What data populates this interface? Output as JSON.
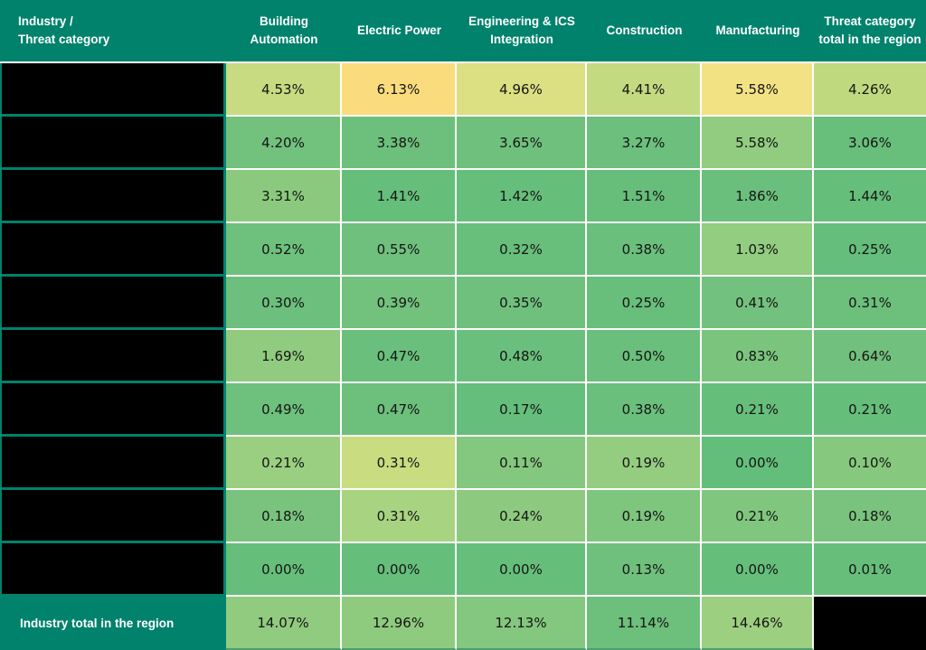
{
  "colors": {
    "teal": "#00826C",
    "gridline_white": "#FCFCFA",
    "redaction_black": "#000000",
    "min_green": "#63BE7B",
    "max_yellow": "#FBDC7D"
  },
  "header": {
    "corner_label": "Industry /\nThreat category",
    "columns": [
      "Building Automation",
      "Electric Power",
      "Engineering & ICS Integration",
      "Construction",
      "Manufacturing",
      "Threat category total in the region"
    ]
  },
  "rows": [
    {
      "label_redacted": true,
      "cells": [
        {
          "value": "4.53%",
          "color": "#C8DB80"
        },
        {
          "value": "6.13%",
          "color": "#FBDC7D"
        },
        {
          "value": "4.96%",
          "color": "#DCDF82"
        },
        {
          "value": "4.41%",
          "color": "#C3DA80"
        },
        {
          "value": "5.58%",
          "color": "#F3E284"
        },
        {
          "value": "4.26%",
          "color": "#BFD97F"
        }
      ]
    },
    {
      "label_redacted": true,
      "cells": [
        {
          "value": "4.20%",
          "color": "#72C17D"
        },
        {
          "value": "3.38%",
          "color": "#6DBF7C"
        },
        {
          "value": "3.65%",
          "color": "#6FC07D"
        },
        {
          "value": "3.27%",
          "color": "#6CBF7C"
        },
        {
          "value": "5.58%",
          "color": "#92CC80"
        },
        {
          "value": "3.06%",
          "color": "#68BE7B"
        }
      ]
    },
    {
      "label_redacted": true,
      "cells": [
        {
          "value": "3.31%",
          "color": "#8BCA7E"
        },
        {
          "value": "1.41%",
          "color": "#66BE7B"
        },
        {
          "value": "1.42%",
          "color": "#66BE7B"
        },
        {
          "value": "1.51%",
          "color": "#67BE7B"
        },
        {
          "value": "1.86%",
          "color": "#6BBF7C"
        },
        {
          "value": "1.44%",
          "color": "#66BE7B"
        }
      ]
    },
    {
      "label_redacted": true,
      "cells": [
        {
          "value": "0.52%",
          "color": "#6EC07D"
        },
        {
          "value": "0.55%",
          "color": "#6FC07D"
        },
        {
          "value": "0.32%",
          "color": "#68BE7B"
        },
        {
          "value": "0.38%",
          "color": "#6ABF7C"
        },
        {
          "value": "1.03%",
          "color": "#93CD80"
        },
        {
          "value": "0.25%",
          "color": "#65BE7B"
        }
      ]
    },
    {
      "label_redacted": true,
      "cells": [
        {
          "value": "0.30%",
          "color": "#6CBF7C"
        },
        {
          "value": "0.39%",
          "color": "#72C17D"
        },
        {
          "value": "0.35%",
          "color": "#6FC07D"
        },
        {
          "value": "0.25%",
          "color": "#68BE7B"
        },
        {
          "value": "0.41%",
          "color": "#73C17E"
        },
        {
          "value": "0.31%",
          "color": "#6DBF7C"
        }
      ]
    },
    {
      "label_redacted": true,
      "cells": [
        {
          "value": "1.69%",
          "color": "#90CB7F"
        },
        {
          "value": "0.47%",
          "color": "#6ABF7C"
        },
        {
          "value": "0.48%",
          "color": "#6ABF7C"
        },
        {
          "value": "0.50%",
          "color": "#6BBF7C"
        },
        {
          "value": "0.83%",
          "color": "#7BC47E"
        },
        {
          "value": "0.64%",
          "color": "#71C07D"
        }
      ]
    },
    {
      "label_redacted": true,
      "cells": [
        {
          "value": "0.49%",
          "color": "#6EC07D"
        },
        {
          "value": "0.47%",
          "color": "#6DBF7C"
        },
        {
          "value": "0.17%",
          "color": "#65BE7B"
        },
        {
          "value": "0.38%",
          "color": "#6ABF7C"
        },
        {
          "value": "0.21%",
          "color": "#66BE7B"
        },
        {
          "value": "0.21%",
          "color": "#66BE7B"
        }
      ]
    },
    {
      "label_redacted": true,
      "cells": [
        {
          "value": "0.21%",
          "color": "#9ACF81"
        },
        {
          "value": "0.31%",
          "color": "#C9DC7F"
        },
        {
          "value": "0.11%",
          "color": "#84C77E"
        },
        {
          "value": "0.19%",
          "color": "#95CD80"
        },
        {
          "value": "0.00%",
          "color": "#63BE7B"
        },
        {
          "value": "0.10%",
          "color": "#86C87E"
        }
      ]
    },
    {
      "label_redacted": true,
      "cells": [
        {
          "value": "0.18%",
          "color": "#7AC37E"
        },
        {
          "value": "0.31%",
          "color": "#A8D381"
        },
        {
          "value": "0.24%",
          "color": "#8DCA7F"
        },
        {
          "value": "0.19%",
          "color": "#7EC57E"
        },
        {
          "value": "0.21%",
          "color": "#81C67E"
        },
        {
          "value": "0.18%",
          "color": "#7AC37E"
        }
      ]
    },
    {
      "label_redacted": true,
      "cells": [
        {
          "value": "0.00%",
          "color": "#66BE7B"
        },
        {
          "value": "0.00%",
          "color": "#66BE7B"
        },
        {
          "value": "0.00%",
          "color": "#66BE7B"
        },
        {
          "value": "0.13%",
          "color": "#70C07D"
        },
        {
          "value": "0.00%",
          "color": "#66BE7B"
        },
        {
          "value": "0.01%",
          "color": "#67BE7B"
        }
      ]
    }
  ],
  "totals_row": {
    "label": "Industry total in the region",
    "cells": [
      {
        "value": "14.07%",
        "color": "#90CB7F"
      },
      {
        "value": "12.96%",
        "color": "#8FCB7F"
      },
      {
        "value": "12.13%",
        "color": "#84C77E"
      },
      {
        "value": "11.14%",
        "color": "#6DBF7C"
      },
      {
        "value": "14.46%",
        "color": "#9CCF80"
      }
    ],
    "last_cell_redacted": true
  },
  "chart_data": {
    "type": "heatmap",
    "title": "Industry / Threat category",
    "columns": [
      "Building Automation",
      "Electric Power",
      "Engineering & ICS Integration",
      "Construction",
      "Manufacturing",
      "Threat category total in the region"
    ],
    "row_labels": [
      "redacted",
      "redacted",
      "redacted",
      "redacted",
      "redacted",
      "redacted",
      "redacted",
      "redacted",
      "redacted",
      "redacted"
    ],
    "values_percent": [
      [
        4.53,
        6.13,
        4.96,
        4.41,
        5.58,
        4.26
      ],
      [
        4.2,
        3.38,
        3.65,
        3.27,
        5.58,
        3.06
      ],
      [
        3.31,
        1.41,
        1.42,
        1.51,
        1.86,
        1.44
      ],
      [
        0.52,
        0.55,
        0.32,
        0.38,
        1.03,
        0.25
      ],
      [
        0.3,
        0.39,
        0.35,
        0.25,
        0.41,
        0.31
      ],
      [
        1.69,
        0.47,
        0.48,
        0.5,
        0.83,
        0.64
      ],
      [
        0.49,
        0.47,
        0.17,
        0.38,
        0.21,
        0.21
      ],
      [
        0.21,
        0.31,
        0.11,
        0.19,
        0.0,
        0.1
      ],
      [
        0.18,
        0.31,
        0.24,
        0.19,
        0.21,
        0.18
      ],
      [
        0.0,
        0.0,
        0.0,
        0.13,
        0.0,
        0.01
      ]
    ],
    "totals_row": {
      "label": "Industry total in the region",
      "values_percent": [
        14.07,
        12.96,
        12.13,
        11.14,
        14.46,
        null
      ]
    },
    "units": "%",
    "legend_position": "none",
    "color_scale": "green #63BE7B (low) to yellow #FBDC7D (high), scaled per row",
    "redactions": "all 10 row labels and the bottom-right grand-total cell are covered by black boxes"
  }
}
